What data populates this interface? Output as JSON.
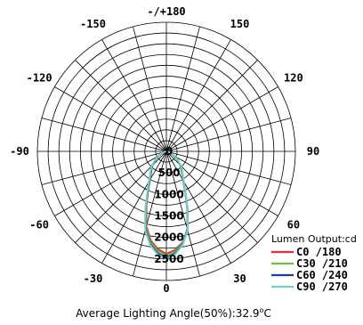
{
  "chart_data": {
    "type": "polar-line",
    "title": "",
    "angle_labels": [
      "-/+180",
      "-150",
      "150",
      "-120",
      "120",
      "-90",
      "90",
      "-60",
      "60",
      "-30",
      "30",
      "0"
    ],
    "angle_values_deg": [
      180,
      -150,
      150,
      -120,
      120,
      -90,
      90,
      -60,
      60,
      -30,
      30,
      0
    ],
    "radial_ticks": [
      "0",
      "500",
      "1000",
      "1500",
      "2000",
      "2500"
    ],
    "radial_values": [
      0,
      500,
      1000,
      1500,
      2000,
      2500
    ],
    "radial_max": 3000,
    "angle_grid_step_deg": 15,
    "radial_grid_step": 250,
    "legend_title": "Lumen Output:cd",
    "legend_position": "bottom-right",
    "series": [
      {
        "name": "C0   /180",
        "color": "#e53030",
        "angles": [
          0,
          5,
          10,
          15,
          20,
          25,
          30,
          35,
          40,
          45,
          55,
          65,
          75,
          85,
          90
        ],
        "right": [
          2380,
          2300,
          2150,
          1900,
          1450,
          1050,
          780,
          640,
          560,
          470,
          300,
          140,
          40,
          5,
          0
        ],
        "left": [
          2380,
          2280,
          2100,
          1800,
          1350,
          1000,
          760,
          630,
          550,
          470,
          300,
          140,
          40,
          5,
          0
        ]
      },
      {
        "name": "C30  /210",
        "color": "#6cc040",
        "angles": [
          0,
          5,
          10,
          15,
          20,
          25,
          30,
          35,
          40,
          45,
          55,
          65,
          75,
          85,
          90
        ],
        "right": [
          2420,
          2340,
          2170,
          1880,
          1420,
          1040,
          780,
          630,
          540,
          450,
          290,
          140,
          40,
          5,
          0
        ],
        "left": [
          2420,
          2320,
          2140,
          1840,
          1380,
          1020,
          770,
          620,
          530,
          450,
          290,
          140,
          40,
          5,
          0
        ]
      },
      {
        "name": "C60  /240",
        "color": "#1a3fa0",
        "angles": [
          0,
          5,
          10,
          15,
          20,
          25,
          30,
          35,
          40,
          45,
          55,
          65,
          75,
          85,
          90
        ],
        "right": [
          2470,
          2380,
          2190,
          1880,
          1420,
          1040,
          800,
          650,
          560,
          470,
          300,
          140,
          40,
          5,
          0
        ],
        "left": [
          2470,
          2370,
          2180,
          1880,
          1420,
          1040,
          790,
          640,
          550,
          470,
          300,
          140,
          40,
          5,
          0
        ]
      },
      {
        "name": "C90  /270",
        "color": "#70d0d0",
        "angles": [
          0,
          5,
          10,
          15,
          20,
          25,
          30,
          35,
          40,
          45,
          55,
          65,
          75,
          85,
          90
        ],
        "right": [
          2500,
          2400,
          2200,
          1900,
          1430,
          1050,
          810,
          660,
          570,
          480,
          310,
          150,
          45,
          5,
          0
        ],
        "left": [
          2500,
          2400,
          2200,
          1900,
          1430,
          1050,
          810,
          660,
          570,
          480,
          310,
          150,
          45,
          5,
          0
        ]
      }
    ]
  },
  "caption": {
    "text": "Average Lighting Angle(50%):32.9",
    "unit_sup": "o",
    "unit": "C"
  }
}
